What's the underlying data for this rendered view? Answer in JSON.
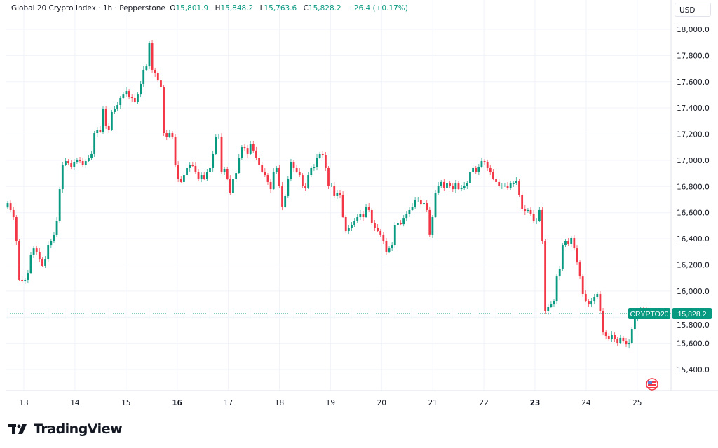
{
  "header": {
    "symbol_title": "Global 20 Crypto Index · 1h · Pepperstone",
    "open_label": "O",
    "open": "15,801.9",
    "high_label": "H",
    "high": "15,848.2",
    "low_label": "L",
    "low": "15,763.6",
    "close_label": "C",
    "close": "15,828.2",
    "change": "+26.4 (+0.17%)"
  },
  "currency_button": "USD",
  "last_price": {
    "symbol": "CRYPTO20",
    "price": "15,828.2",
    "value": 15828.2
  },
  "logo": {
    "text": "TradingView"
  },
  "colors": {
    "up": "#089981",
    "down": "#f23645",
    "grid": "#f0f3fa",
    "text": "#131722"
  },
  "icons": {
    "flag": "us-flag-icon",
    "logo": "tradingview-logo-icon"
  },
  "chart_data": {
    "type": "candlestick",
    "interval": "1h",
    "ylim": [
      15250,
      18100
    ],
    "y_ticks": [
      "18,000.0",
      "17,800.0",
      "17,600.0",
      "17,400.0",
      "17,200.0",
      "17,000.0",
      "16,800.0",
      "16,600.0",
      "16,400.0",
      "16,200.0",
      "16,000.0",
      "15,800.0",
      "15,600.0",
      "15,400.0"
    ],
    "y_tick_values": [
      18000,
      17800,
      17600,
      17400,
      17200,
      17000,
      16800,
      16600,
      16400,
      16200,
      16000,
      15800,
      15600,
      15400
    ],
    "x_ticks": [
      "13",
      "14",
      "15",
      "16",
      "17",
      "18",
      "19",
      "20",
      "21",
      "22",
      "23",
      "24",
      "25"
    ],
    "x_ticks_bold": [
      "16",
      "23"
    ],
    "grid": true,
    "first_open": 16640,
    "closes": [
      16673,
      16620,
      16566,
      16379,
      16085,
      16074,
      16085,
      16138,
      16272,
      16325,
      16299,
      16245,
      16192,
      16245,
      16352,
      16379,
      16432,
      16539,
      16780,
      16967,
      16994,
      16978,
      16951,
      16984,
      17005,
      16994,
      16967,
      16994,
      17021,
      17048,
      17208,
      17235,
      17219,
      17395,
      17262,
      17235,
      17369,
      17395,
      17422,
      17476,
      17502,
      17529,
      17486,
      17476,
      17449,
      17502,
      17583,
      17690,
      17716,
      17893,
      17690,
      17663,
      17609,
      17556,
      17208,
      17181,
      17208,
      17181,
      16967,
      16860,
      16834,
      16887,
      16941,
      16967,
      16957,
      16914,
      16860,
      16887,
      16860,
      16914,
      16941,
      17048,
      17181,
      17181,
      16914,
      16930,
      16860,
      16753,
      16860,
      16903,
      17021,
      17101,
      17090,
      17048,
      17128,
      17075,
      17021,
      16967,
      16914,
      16887,
      16834,
      16780,
      16914,
      16941,
      16807,
      16646,
      16727,
      16860,
      16984,
      16941,
      16914,
      16887,
      16807,
      16791,
      16887,
      16941,
      16951,
      17021,
      17048,
      17037,
      16941,
      16807,
      16807,
      16727,
      16753,
      16737,
      16566,
      16459,
      16486,
      16502,
      16539,
      16566,
      16593,
      16566,
      16646,
      16620,
      16523,
      16486,
      16459,
      16432,
      16379,
      16299,
      16325,
      16352,
      16502,
      16523,
      16512,
      16555,
      16593,
      16620,
      16646,
      16700,
      16700,
      16662,
      16673,
      16620,
      16433,
      16566,
      16753,
      16807,
      16834,
      16791,
      16823,
      16807,
      16780,
      16823,
      16780,
      16791,
      16807,
      16823,
      16914,
      16941,
      16914,
      16951,
      16994,
      16984,
      16941,
      16914,
      16860,
      16834,
      16807,
      16807,
      16807,
      16791,
      16823,
      16823,
      16844,
      16737,
      16630,
      16609,
      16620,
      16593,
      16539,
      16539,
      16620,
      16379,
      15844,
      15881,
      15897,
      15924,
      16111,
      16165,
      16352,
      16379,
      16363,
      16406,
      16325,
      16218,
      16111,
      15978,
      15924,
      15897,
      15924,
      15951,
      15978,
      15844,
      15683,
      15657,
      15630,
      15667,
      15630,
      15603,
      15641,
      15619,
      15592,
      15603,
      15710,
      15790,
      15844,
      15860,
      15855,
      15839,
      15828
    ]
  }
}
